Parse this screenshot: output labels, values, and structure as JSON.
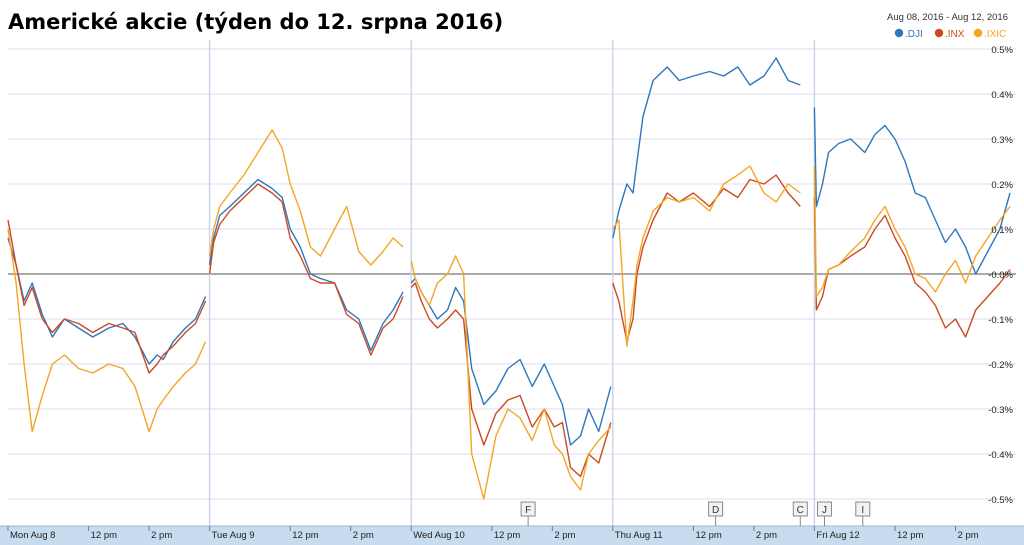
{
  "chart_data": {
    "type": "line",
    "title": "Americké akcie (týden do 12. srpna 2016)",
    "date_range": "Aug 08, 2016  -  Aug 12, 2016",
    "ylim": [
      -0.56,
      0.52
    ],
    "y_ticks": [
      {
        "value": 0.5,
        "label": "0.5%"
      },
      {
        "value": 0.4,
        "label": "0.4%"
      },
      {
        "value": 0.3,
        "label": "0.3%"
      },
      {
        "value": 0.2,
        "label": "0.2%"
      },
      {
        "value": 0.1,
        "label": "0.1%"
      },
      {
        "value": 0.0,
        "label": "-0.0%"
      },
      {
        "value": -0.1,
        "label": "-0.1%"
      },
      {
        "value": -0.2,
        "label": "-0.2%"
      },
      {
        "value": -0.3,
        "label": "-0.3%"
      },
      {
        "value": -0.4,
        "label": "-0.4%"
      },
      {
        "value": -0.5,
        "label": "-0.5%"
      }
    ],
    "x_ticks": [
      {
        "x": 0.0,
        "label": "Mon Aug 8"
      },
      {
        "x": 0.4,
        "label": "12 pm"
      },
      {
        "x": 0.7,
        "label": "2 pm"
      },
      {
        "x": 1.0,
        "label": "Tue Aug 9"
      },
      {
        "x": 1.4,
        "label": "12 pm"
      },
      {
        "x": 1.7,
        "label": "2 pm"
      },
      {
        "x": 2.0,
        "label": "Wed Aug 10"
      },
      {
        "x": 2.4,
        "label": "12 pm"
      },
      {
        "x": 2.7,
        "label": "2 pm"
      },
      {
        "x": 3.0,
        "label": "Thu Aug 11"
      },
      {
        "x": 3.4,
        "label": "12 pm"
      },
      {
        "x": 3.7,
        "label": "2 pm"
      },
      {
        "x": 4.0,
        "label": "Fri Aug 12"
      },
      {
        "x": 4.4,
        "label": "12 pm"
      },
      {
        "x": 4.7,
        "label": "2 pm"
      }
    ],
    "flags": [
      {
        "x": 2.58,
        "label": "F"
      },
      {
        "x": 3.51,
        "label": "D"
      },
      {
        "x": 3.93,
        "label": "C"
      },
      {
        "x": 4.05,
        "label": "J"
      },
      {
        "x": 4.24,
        "label": "I"
      }
    ],
    "series": [
      {
        "name": ".DJI",
        "color": "#2f77bb",
        "x": [
          0.0,
          0.04,
          0.08,
          0.12,
          0.17,
          0.22,
          0.28,
          0.35,
          0.42,
          0.5,
          0.57,
          0.63,
          0.7,
          0.74,
          0.77,
          0.82,
          0.88,
          0.93,
          0.98,
          1.0,
          1.02,
          1.05,
          1.1,
          1.17,
          1.24,
          1.31,
          1.36,
          1.4,
          1.45,
          1.5,
          1.55,
          1.62,
          1.68,
          1.74,
          1.8,
          1.86,
          1.91,
          1.96,
          2.0,
          2.02,
          2.05,
          2.09,
          2.13,
          2.18,
          2.22,
          2.26,
          2.3,
          2.36,
          2.42,
          2.48,
          2.54,
          2.6,
          2.66,
          2.71,
          2.75,
          2.79,
          2.84,
          2.88,
          2.93,
          2.99,
          3.0,
          3.03,
          3.07,
          3.1,
          3.12,
          3.15,
          3.2,
          3.27,
          3.33,
          3.4,
          3.48,
          3.55,
          3.62,
          3.68,
          3.75,
          3.81,
          3.87,
          3.93,
          4.0,
          4.01,
          4.04,
          4.07,
          4.12,
          4.18,
          4.25,
          4.3,
          4.35,
          4.4,
          4.45,
          4.5,
          4.55,
          4.6,
          4.65,
          4.7,
          4.75,
          4.8,
          4.86,
          4.92,
          4.97,
          5.0
        ],
        "values": [
          0.08,
          0.02,
          -0.06,
          -0.02,
          -0.09,
          -0.14,
          -0.1,
          -0.12,
          -0.14,
          -0.12,
          -0.11,
          -0.14,
          -0.2,
          -0.18,
          -0.19,
          -0.15,
          -0.12,
          -0.1,
          -0.05,
          0.02,
          0.08,
          0.13,
          0.15,
          0.18,
          0.21,
          0.19,
          0.17,
          0.1,
          0.06,
          0.0,
          -0.01,
          -0.02,
          -0.08,
          -0.1,
          -0.17,
          -0.11,
          -0.08,
          -0.04,
          -0.02,
          -0.01,
          -0.04,
          -0.07,
          -0.1,
          -0.08,
          -0.03,
          -0.06,
          -0.21,
          -0.29,
          -0.26,
          -0.21,
          -0.19,
          -0.25,
          -0.2,
          -0.25,
          -0.29,
          -0.38,
          -0.36,
          -0.3,
          -0.35,
          -0.25,
          0.08,
          0.14,
          0.2,
          0.18,
          0.25,
          0.35,
          0.43,
          0.46,
          0.43,
          0.44,
          0.45,
          0.44,
          0.46,
          0.42,
          0.44,
          0.48,
          0.43,
          0.42,
          0.37,
          0.15,
          0.2,
          0.27,
          0.29,
          0.3,
          0.27,
          0.31,
          0.33,
          0.3,
          0.25,
          0.18,
          0.17,
          0.12,
          0.07,
          0.1,
          0.06,
          0.0,
          0.05,
          0.1,
          0.18,
          0.17
        ]
      },
      {
        "name": ".INX",
        "color": "#cc4a22",
        "x": [
          0.0,
          0.04,
          0.08,
          0.12,
          0.17,
          0.22,
          0.28,
          0.35,
          0.42,
          0.5,
          0.57,
          0.63,
          0.7,
          0.74,
          0.77,
          0.82,
          0.88,
          0.93,
          0.98,
          1.0,
          1.02,
          1.05,
          1.1,
          1.17,
          1.24,
          1.31,
          1.36,
          1.4,
          1.45,
          1.5,
          1.55,
          1.62,
          1.68,
          1.74,
          1.8,
          1.86,
          1.91,
          1.96,
          2.0,
          2.02,
          2.05,
          2.09,
          2.13,
          2.18,
          2.22,
          2.26,
          2.3,
          2.36,
          2.42,
          2.48,
          2.54,
          2.6,
          2.66,
          2.71,
          2.75,
          2.79,
          2.84,
          2.88,
          2.93,
          2.99,
          3.0,
          3.03,
          3.07,
          3.1,
          3.12,
          3.15,
          3.2,
          3.27,
          3.33,
          3.4,
          3.48,
          3.55,
          3.62,
          3.68,
          3.75,
          3.81,
          3.87,
          3.93,
          4.0,
          4.01,
          4.04,
          4.07,
          4.12,
          4.18,
          4.25,
          4.3,
          4.35,
          4.4,
          4.45,
          4.5,
          4.55,
          4.6,
          4.65,
          4.7,
          4.75,
          4.8,
          4.86,
          4.92,
          4.97,
          5.0
        ],
        "values": [
          0.12,
          0.02,
          -0.07,
          -0.03,
          -0.1,
          -0.13,
          -0.1,
          -0.11,
          -0.13,
          -0.11,
          -0.12,
          -0.13,
          -0.22,
          -0.2,
          -0.18,
          -0.16,
          -0.13,
          -0.11,
          -0.06,
          0.0,
          0.07,
          0.11,
          0.14,
          0.17,
          0.2,
          0.18,
          0.16,
          0.08,
          0.04,
          -0.01,
          -0.02,
          -0.02,
          -0.09,
          -0.11,
          -0.18,
          -0.12,
          -0.1,
          -0.05,
          -0.03,
          -0.02,
          -0.06,
          -0.1,
          -0.12,
          -0.1,
          -0.08,
          -0.1,
          -0.3,
          -0.38,
          -0.31,
          -0.28,
          -0.27,
          -0.34,
          -0.3,
          -0.34,
          -0.33,
          -0.43,
          -0.45,
          -0.4,
          -0.42,
          -0.33,
          -0.02,
          -0.06,
          -0.15,
          -0.1,
          0.0,
          0.06,
          0.12,
          0.18,
          0.16,
          0.18,
          0.15,
          0.19,
          0.17,
          0.21,
          0.2,
          0.22,
          0.18,
          0.15,
          0.17,
          -0.08,
          -0.05,
          0.01,
          0.02,
          0.04,
          0.06,
          0.1,
          0.13,
          0.08,
          0.04,
          -0.02,
          -0.04,
          -0.07,
          -0.12,
          -0.1,
          -0.14,
          -0.08,
          -0.05,
          -0.02,
          0.01,
          0.06
        ]
      },
      {
        "name": ".IXIC",
        "color": "#f4a623",
        "x": [
          0.0,
          0.04,
          0.08,
          0.12,
          0.17,
          0.22,
          0.28,
          0.35,
          0.42,
          0.5,
          0.57,
          0.63,
          0.7,
          0.74,
          0.77,
          0.82,
          0.88,
          0.93,
          0.98,
          1.0,
          1.02,
          1.05,
          1.1,
          1.17,
          1.24,
          1.31,
          1.36,
          1.4,
          1.45,
          1.5,
          1.55,
          1.62,
          1.68,
          1.74,
          1.8,
          1.86,
          1.91,
          1.96,
          2.0,
          2.02,
          2.05,
          2.09,
          2.13,
          2.18,
          2.22,
          2.26,
          2.3,
          2.36,
          2.42,
          2.48,
          2.54,
          2.6,
          2.66,
          2.71,
          2.75,
          2.79,
          2.84,
          2.88,
          2.93,
          2.99,
          3.0,
          3.03,
          3.07,
          3.1,
          3.12,
          3.15,
          3.2,
          3.27,
          3.33,
          3.4,
          3.48,
          3.55,
          3.62,
          3.68,
          3.75,
          3.81,
          3.87,
          3.93,
          4.0,
          4.01,
          4.04,
          4.07,
          4.12,
          4.18,
          4.25,
          4.3,
          4.35,
          4.4,
          4.45,
          4.5,
          4.55,
          4.6,
          4.65,
          4.7,
          4.75,
          4.8,
          4.86,
          4.92,
          4.97,
          5.0
        ],
        "values": [
          0.1,
          -0.02,
          -0.2,
          -0.35,
          -0.27,
          -0.2,
          -0.18,
          -0.21,
          -0.22,
          -0.2,
          -0.21,
          -0.25,
          -0.35,
          -0.3,
          -0.28,
          -0.25,
          -0.22,
          -0.2,
          -0.15,
          0.04,
          0.1,
          0.15,
          0.18,
          0.22,
          0.27,
          0.32,
          0.28,
          0.2,
          0.14,
          0.06,
          0.04,
          0.1,
          0.15,
          0.05,
          0.02,
          0.05,
          0.08,
          0.06,
          0.03,
          -0.01,
          -0.04,
          -0.07,
          -0.02,
          0.0,
          0.04,
          0.0,
          -0.4,
          -0.5,
          -0.36,
          -0.3,
          -0.32,
          -0.37,
          -0.3,
          -0.38,
          -0.4,
          -0.45,
          -0.48,
          -0.4,
          -0.37,
          -0.34,
          0.1,
          0.12,
          -0.16,
          -0.06,
          0.02,
          0.08,
          0.14,
          0.17,
          0.16,
          0.17,
          0.14,
          0.2,
          0.22,
          0.24,
          0.18,
          0.16,
          0.2,
          0.18,
          0.24,
          -0.05,
          -0.03,
          0.01,
          0.02,
          0.05,
          0.08,
          0.12,
          0.15,
          0.1,
          0.06,
          0.0,
          -0.01,
          -0.04,
          0.0,
          0.03,
          -0.02,
          0.04,
          0.08,
          0.12,
          0.15,
          0.2
        ]
      }
    ]
  }
}
